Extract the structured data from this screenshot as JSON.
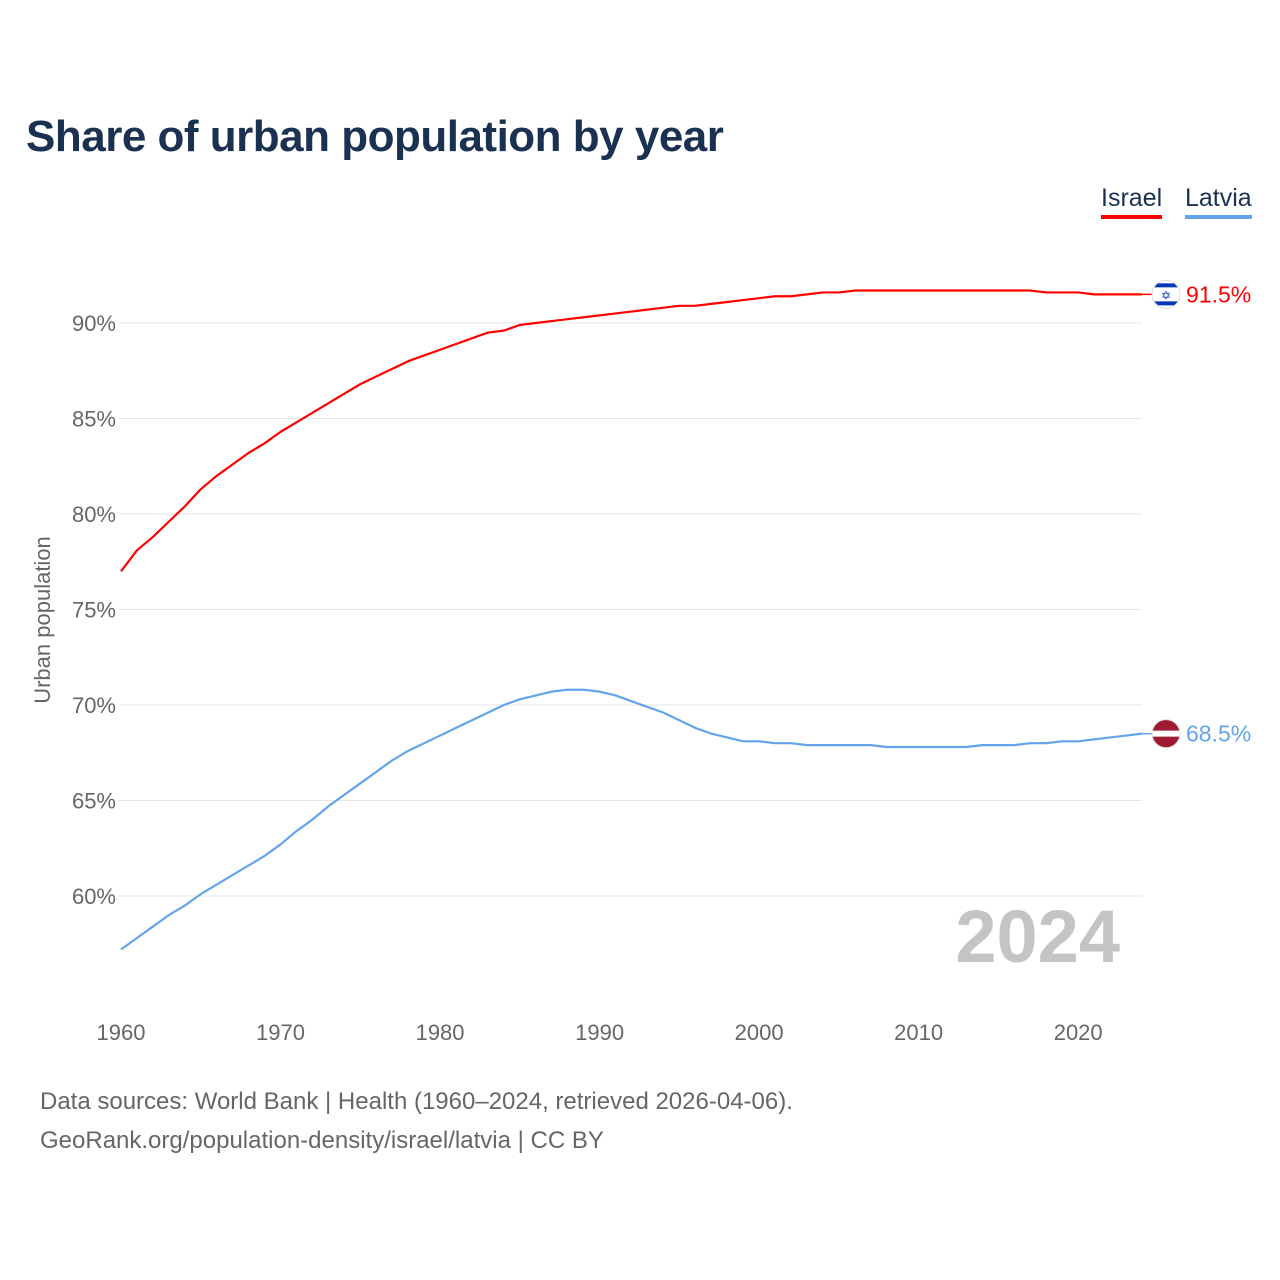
{
  "chart_data": {
    "type": "line",
    "title": "Share of urban population by year",
    "ylabel": "Urban population",
    "xlabel": "",
    "xlim": [
      1960,
      2024
    ],
    "ylim": [
      55.5,
      93
    ],
    "x_ticks": [
      "1960",
      "1970",
      "1980",
      "1990",
      "2000",
      "2010",
      "2020"
    ],
    "y_ticks": [
      60,
      65,
      70,
      75,
      80,
      85,
      90
    ],
    "y_tick_labels": [
      "60%",
      "65%",
      "70%",
      "75%",
      "80%",
      "85%",
      "90%"
    ],
    "grid": true,
    "watermark_year": "2024",
    "legend_position": "top-right",
    "x": [
      1960,
      1961,
      1962,
      1963,
      1964,
      1965,
      1966,
      1967,
      1968,
      1969,
      1970,
      1971,
      1972,
      1973,
      1974,
      1975,
      1976,
      1977,
      1978,
      1979,
      1980,
      1981,
      1982,
      1983,
      1984,
      1985,
      1986,
      1987,
      1988,
      1989,
      1990,
      1991,
      1992,
      1993,
      1994,
      1995,
      1996,
      1997,
      1998,
      1999,
      2000,
      2001,
      2002,
      2003,
      2004,
      2005,
      2006,
      2007,
      2008,
      2009,
      2010,
      2011,
      2012,
      2013,
      2014,
      2015,
      2016,
      2017,
      2018,
      2019,
      2020,
      2021,
      2022,
      2023,
      2024
    ],
    "series": [
      {
        "name": "Israel",
        "color": "#ff0000",
        "end_label": "91.5%",
        "values": [
          77.0,
          78.1,
          78.8,
          79.6,
          80.4,
          81.3,
          82.0,
          82.6,
          83.2,
          83.7,
          84.3,
          84.8,
          85.3,
          85.8,
          86.3,
          86.8,
          87.2,
          87.6,
          88.0,
          88.3,
          88.6,
          88.9,
          89.2,
          89.5,
          89.6,
          89.9,
          90.0,
          90.1,
          90.2,
          90.3,
          90.4,
          90.5,
          90.6,
          90.7,
          90.8,
          90.9,
          90.9,
          91.0,
          91.1,
          91.2,
          91.3,
          91.4,
          91.4,
          91.5,
          91.6,
          91.6,
          91.7,
          91.7,
          91.7,
          91.7,
          91.7,
          91.7,
          91.7,
          91.7,
          91.7,
          91.7,
          91.7,
          91.7,
          91.6,
          91.6,
          91.6,
          91.5,
          91.5,
          91.5,
          91.5
        ]
      },
      {
        "name": "Latvia",
        "color": "#63a4ea",
        "end_label": "68.5%",
        "values": [
          57.2,
          57.8,
          58.4,
          59.0,
          59.5,
          60.1,
          60.6,
          61.1,
          61.6,
          62.1,
          62.7,
          63.4,
          64.0,
          64.7,
          65.3,
          65.9,
          66.5,
          67.1,
          67.6,
          68.0,
          68.4,
          68.8,
          69.2,
          69.6,
          70.0,
          70.3,
          70.5,
          70.7,
          70.8,
          70.8,
          70.7,
          70.5,
          70.2,
          69.9,
          69.6,
          69.2,
          68.8,
          68.5,
          68.3,
          68.1,
          68.1,
          68.0,
          68.0,
          67.9,
          67.9,
          67.9,
          67.9,
          67.9,
          67.8,
          67.8,
          67.8,
          67.8,
          67.8,
          67.8,
          67.9,
          67.9,
          67.9,
          68.0,
          68.0,
          68.1,
          68.1,
          68.2,
          68.3,
          68.4,
          68.5
        ]
      }
    ]
  },
  "footer": {
    "sources": "Data sources: World Bank | Health (1960–2024, retrieved 2026-04-06).",
    "credit": "GeoRank.org/population-density/israel/latvia | CC BY"
  }
}
